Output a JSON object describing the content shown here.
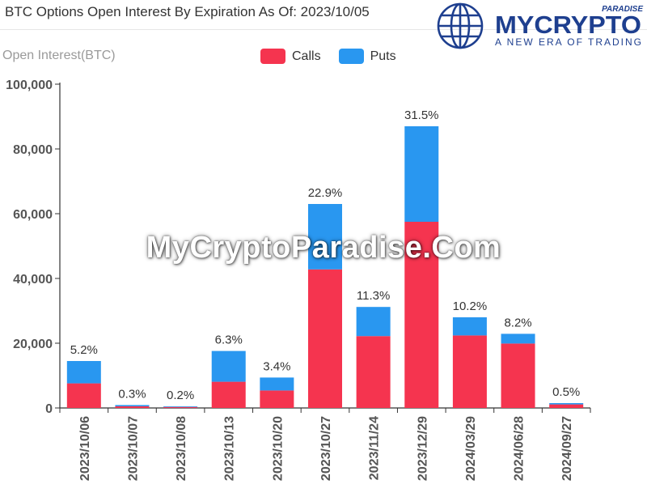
{
  "title": "BTC Options Open Interest By Expiration As Of: 2023/10/05",
  "brand": {
    "name": "MYCRYPTO",
    "tag": "PARADISE",
    "tagline": "A NEW ERA OF TRADING",
    "color": "#1e3f8f"
  },
  "watermark": "MyCryptoParadise.Com",
  "colors": {
    "calls": "#f5344f",
    "puts": "#2997f0",
    "axis": "#333333",
    "grid": "#e8e8e8"
  },
  "chart_data": {
    "type": "bar",
    "stacked": true,
    "ylabel": "Open Interest(BTC)",
    "ylim": [
      0,
      100000
    ],
    "yticks": [
      "0",
      "20,000",
      "40,000",
      "60,000",
      "80,000",
      "100,000"
    ],
    "categories": [
      "2023/10/06",
      "2023/10/07",
      "2023/10/08",
      "2023/10/13",
      "2023/10/20",
      "2023/10/27",
      "2023/11/24",
      "2023/12/29",
      "2024/03/29",
      "2024/06/28",
      "2024/09/27"
    ],
    "series": [
      {
        "name": "Calls",
        "values": [
          7600,
          500,
          300,
          8100,
          5400,
          42800,
          22200,
          57500,
          22400,
          19900,
          1100
        ]
      },
      {
        "name": "Puts",
        "values": [
          6900,
          400,
          200,
          9500,
          4000,
          20200,
          9000,
          29500,
          5600,
          3000,
          400
        ]
      }
    ],
    "labels": [
      "5.2%",
      "0.3%",
      "0.2%",
      "6.3%",
      "3.4%",
      "22.9%",
      "11.3%",
      "31.5%",
      "10.2%",
      "8.2%",
      "0.5%"
    ],
    "legend_position": "top-center",
    "grid": false
  }
}
